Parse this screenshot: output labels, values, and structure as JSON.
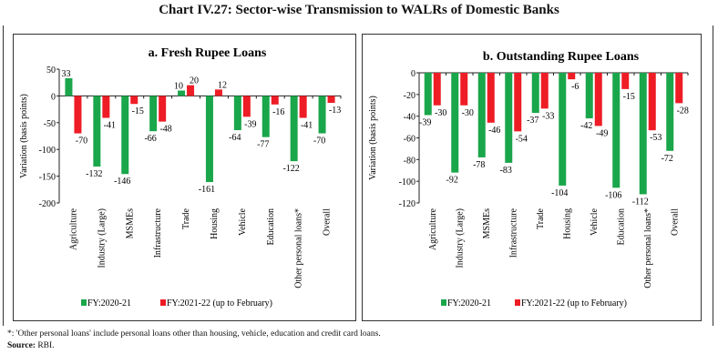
{
  "title": "Chart IV.27: Sector-wise Transmission to WALRs of Domestic Banks",
  "colors": {
    "fy2021": "#1aa64a",
    "fy2122": "#ee1c25"
  },
  "chart_data": [
    {
      "type": "bar",
      "title": "a. Fresh Rupee Loans",
      "ylabel": "Variation (basis points)",
      "ylim": [
        -200,
        50
      ],
      "yticks": [
        50,
        0,
        -50,
        -100,
        -150,
        -200
      ],
      "categories": [
        "Agriculture",
        "Industry (Large)",
        "MSMEs",
        "Infrastructure",
        "Trade",
        "Housing",
        "Vehicle",
        "Education",
        "Other personal loans*",
        "Overall"
      ],
      "series": [
        {
          "name": "FY:2020-21",
          "values": [
            33,
            -132,
            -146,
            -66,
            10,
            -161,
            -64,
            -77,
            -122,
            -70
          ]
        },
        {
          "name": "FY:2021-22 (up to February)",
          "values": [
            -70,
            -41,
            -15,
            -48,
            20,
            12,
            -39,
            -16,
            -41,
            -13
          ]
        }
      ],
      "legend": "bottom"
    },
    {
      "type": "bar",
      "title": "b. Outstanding Rupee Loans",
      "ylabel": "Variation (basis points)",
      "ylim": [
        -120,
        0
      ],
      "yticks": [
        0,
        -20,
        -40,
        -60,
        -80,
        -100,
        -120
      ],
      "categories": [
        "Agriculture",
        "Industry (Large)",
        "MSMEs",
        "Infrastructure",
        "Trade",
        "Housing",
        "Vehicle",
        "Education",
        "Other personal loans*",
        "Overall"
      ],
      "series": [
        {
          "name": "FY:2020-21",
          "values": [
            -39,
            -92,
            -78,
            -83,
            -37,
            -104,
            -42,
            -106,
            -112,
            -72
          ]
        },
        {
          "name": "FY:2021-22 (up to February)",
          "values": [
            -30,
            -30,
            -46,
            -54,
            -33,
            -6,
            -49,
            -15,
            -53,
            -28
          ]
        }
      ],
      "legend": "bottom"
    }
  ],
  "footnote": "*: 'Other personal loans' include personal loans other than housing, vehicle, education and credit card loans.",
  "source_label": "Source:",
  "source_text": " RBI."
}
